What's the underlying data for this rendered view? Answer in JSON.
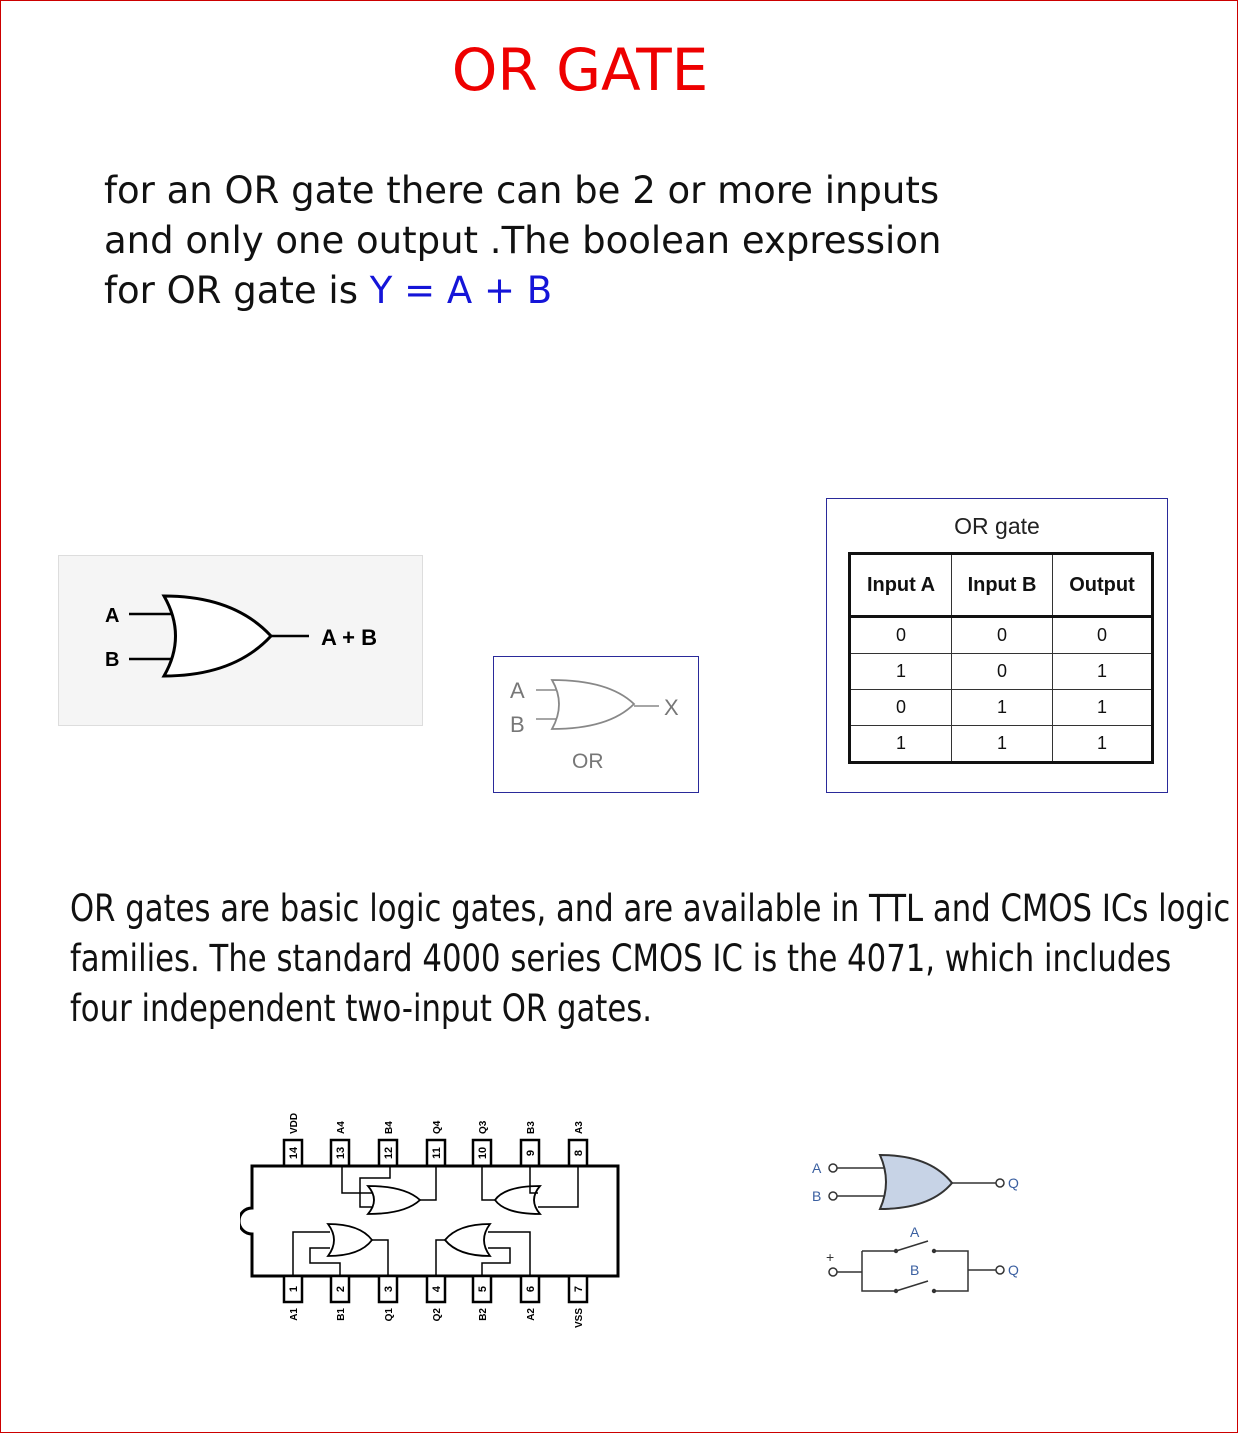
{
  "title": "OR GATE",
  "intro": {
    "text": "for an OR gate there can be 2 or more inputs and only one output .The boolean expression for OR gate is",
    "expression": "Y = A + B"
  },
  "symbol1": {
    "input_a": "A",
    "input_b": "B",
    "output": "A + B"
  },
  "symbol2": {
    "input_a": "A",
    "input_b": "B",
    "output": "X",
    "caption": "OR"
  },
  "truth_table": {
    "title": "OR gate",
    "headers": [
      "Input A",
      "Input B",
      "Output"
    ],
    "rows": [
      [
        "0",
        "0",
        "0"
      ],
      [
        "1",
        "0",
        "1"
      ],
      [
        "0",
        "1",
        "1"
      ],
      [
        "1",
        "1",
        "1"
      ]
    ]
  },
  "paragraph": "OR gates are basic logic gates, and are available in TTL and CMOS ICs logic families. The standard 4000 series CMOS IC is the 4071, which includes four independent two-input OR gates.",
  "ic_4071": {
    "top_pins": [
      {
        "num": "14",
        "label": "VDD"
      },
      {
        "num": "13",
        "label": "A4"
      },
      {
        "num": "12",
        "label": "B4"
      },
      {
        "num": "11",
        "label": "Q4"
      },
      {
        "num": "10",
        "label": "Q3"
      },
      {
        "num": "9",
        "label": "B3"
      },
      {
        "num": "8",
        "label": "A3"
      }
    ],
    "bottom_pins": [
      {
        "num": "1",
        "label": "A1"
      },
      {
        "num": "2",
        "label": "B1"
      },
      {
        "num": "3",
        "label": "Q1"
      },
      {
        "num": "4",
        "label": "Q2"
      },
      {
        "num": "5",
        "label": "B2"
      },
      {
        "num": "6",
        "label": "A2"
      },
      {
        "num": "7",
        "label": "VSS"
      }
    ]
  },
  "switch_equivalent": {
    "gate_in_a": "A",
    "gate_in_b": "B",
    "gate_out": "Q",
    "plus": "+",
    "switch_a": "A",
    "switch_b": "B",
    "switch_out": "Q"
  }
}
